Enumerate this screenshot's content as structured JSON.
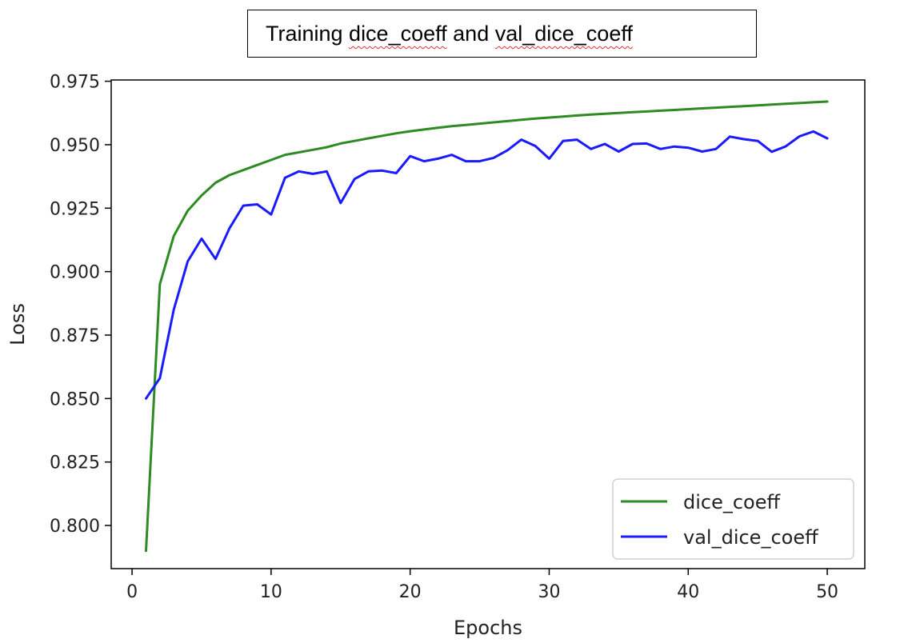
{
  "title": {
    "prefix": "Training ",
    "word1": "dice_coeff",
    "middle": " and ",
    "word2": "val_dice_coeff"
  },
  "chart_data": {
    "type": "line",
    "xlabel": "Epochs",
    "ylabel": "Loss",
    "xlim": [
      -1.5,
      52.7
    ],
    "ylim": [
      0.783,
      0.9755
    ],
    "xticks": [
      0,
      10,
      20,
      30,
      40,
      50
    ],
    "yticks": [
      0.8,
      0.825,
      0.85,
      0.875,
      0.9,
      0.925,
      0.95,
      0.975
    ],
    "ytick_labels": [
      "0.800",
      "0.825",
      "0.850",
      "0.875",
      "0.900",
      "0.925",
      "0.950",
      "0.975"
    ],
    "grid": false,
    "legend_position": "lower right",
    "series": [
      {
        "name": "dice_coeff",
        "color": "#2e8b22",
        "x": [
          1,
          2,
          3,
          4,
          5,
          6,
          7,
          8,
          9,
          10,
          11,
          12,
          13,
          14,
          15,
          16,
          17,
          18,
          19,
          20,
          21,
          22,
          23,
          24,
          25,
          26,
          27,
          28,
          29,
          30,
          31,
          32,
          33,
          34,
          35,
          36,
          37,
          38,
          39,
          40,
          41,
          42,
          43,
          44,
          45,
          46,
          47,
          48,
          49,
          50
        ],
        "values": [
          0.79,
          0.895,
          0.914,
          0.924,
          0.93,
          0.935,
          0.938,
          0.94,
          0.942,
          0.944,
          0.946,
          0.947,
          0.948,
          0.949,
          0.9505,
          0.9515,
          0.9525,
          0.9535,
          0.9545,
          0.9553,
          0.956,
          0.9567,
          0.9573,
          0.9578,
          0.9583,
          0.9588,
          0.9593,
          0.9598,
          0.9603,
          0.9607,
          0.9611,
          0.9615,
          0.9619,
          0.9622,
          0.9625,
          0.9628,
          0.9631,
          0.9634,
          0.9637,
          0.964,
          0.9643,
          0.9646,
          0.9649,
          0.9652,
          0.9655,
          0.9658,
          0.9661,
          0.9664,
          0.9667,
          0.967
        ]
      },
      {
        "name": "val_dice_coeff",
        "color": "#1a1aff",
        "x": [
          1,
          2,
          3,
          4,
          5,
          6,
          7,
          8,
          9,
          10,
          11,
          12,
          13,
          14,
          15,
          16,
          17,
          18,
          19,
          20,
          21,
          22,
          23,
          24,
          25,
          26,
          27,
          28,
          29,
          30,
          31,
          32,
          33,
          34,
          35,
          36,
          37,
          38,
          39,
          40,
          41,
          42,
          43,
          44,
          45,
          46,
          47,
          48,
          49,
          50
        ],
        "values": [
          0.85,
          0.858,
          0.885,
          0.904,
          0.913,
          0.905,
          0.917,
          0.926,
          0.9265,
          0.9225,
          0.937,
          0.9395,
          0.9385,
          0.9395,
          0.927,
          0.9365,
          0.9395,
          0.9398,
          0.9388,
          0.9455,
          0.9435,
          0.9445,
          0.946,
          0.9435,
          0.9435,
          0.9448,
          0.9478,
          0.952,
          0.9495,
          0.9445,
          0.9515,
          0.952,
          0.9483,
          0.9503,
          0.9473,
          0.9503,
          0.9505,
          0.9483,
          0.9493,
          0.9488,
          0.9473,
          0.9483,
          0.9532,
          0.9522,
          0.9515,
          0.9472,
          0.9493,
          0.9533,
          0.9552,
          0.9525
        ]
      }
    ]
  }
}
